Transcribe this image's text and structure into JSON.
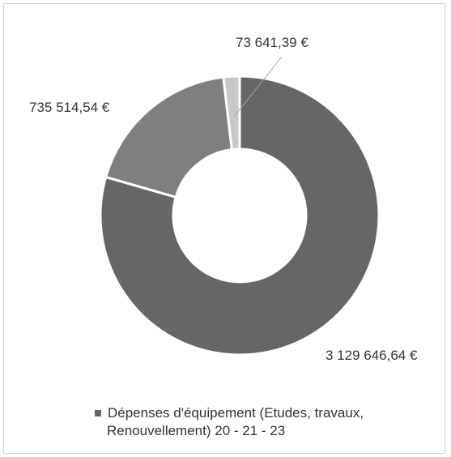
{
  "chart_data": {
    "type": "pie",
    "style": "donut",
    "slices": [
      {
        "label": "3 129 646,64 €",
        "value": 3129646.64,
        "color": "#666666"
      },
      {
        "label": "735 514,54 €",
        "value": 735514.54,
        "color": "#7f7f7f"
      },
      {
        "label": "73 641,39 €",
        "value": 73641.39,
        "color": "#c8c8c8"
      }
    ],
    "legend": {
      "placement": "bottom",
      "entries": [
        {
          "line1": "Dépenses d'équipement (Etudes, travaux,",
          "line2": "Renouvellement)    20 - 21 - 23",
          "color": "#666666"
        }
      ]
    }
  }
}
